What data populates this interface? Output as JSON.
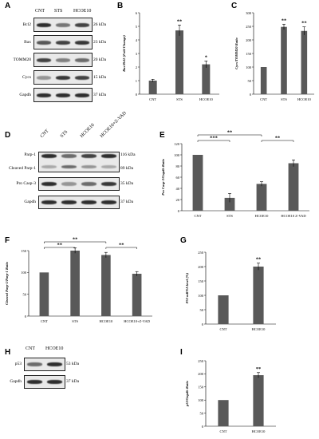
{
  "panel_labels": [
    "A",
    "B",
    "C",
    "D",
    "E",
    "F",
    "G",
    "H",
    "I"
  ],
  "blot_A": {
    "lanes": [
      "CNT",
      "STS",
      "HCOE10"
    ],
    "rows": [
      {
        "name": "Bcl2",
        "kda": "26 kDa",
        "intensity": [
          0.9,
          0.55,
          0.8
        ]
      },
      {
        "name": "Bax",
        "kda": "23 kDa",
        "intensity": [
          0.7,
          0.8,
          0.85
        ]
      },
      {
        "name": "TOMM20",
        "kda": "20 kDa",
        "intensity": [
          0.8,
          0.5,
          0.6
        ]
      },
      {
        "name": "Cycs",
        "kda": "15 kDa",
        "intensity": [
          0.4,
          0.85,
          0.8
        ]
      },
      {
        "name": "Gapdh",
        "kda": "37 kDa",
        "intensity": [
          0.9,
          0.9,
          0.9
        ]
      }
    ]
  },
  "blot_D": {
    "lanes": [
      "CNT",
      "STS",
      "HCOE10",
      "HCOE10+Z-VAD"
    ],
    "rows": [
      {
        "name": "Parp-1",
        "name2": "Cleaved Parp-1",
        "kda": "116 kDa",
        "kda2": "89 kDa",
        "intensity": [
          0.9,
          0.6,
          0.8,
          0.9
        ]
      },
      {
        "name": "Pro Casp-3",
        "kda": "35 kDa",
        "intensity": [
          0.9,
          0.4,
          0.6,
          0.85
        ]
      },
      {
        "name": "Gapdh",
        "kda": "37 kDa",
        "intensity": [
          0.9,
          0.9,
          0.9,
          0.9
        ]
      }
    ]
  },
  "blot_H": {
    "lanes": [
      "CNT",
      "HCOE10"
    ],
    "rows": [
      {
        "name": "p53",
        "kda": "53 kDa",
        "intensity": [
          0.6,
          0.9
        ]
      },
      {
        "name": "Gapdh",
        "kda": "37 kDa",
        "intensity": [
          0.9,
          0.9
        ]
      }
    ]
  },
  "chart_data": [
    {
      "id": "B",
      "type": "bar",
      "categories": [
        "CNT",
        "STS",
        "HCOE10"
      ],
      "values": [
        1,
        4.7,
        2.2
      ],
      "errors": [
        0.1,
        0.4,
        0.25
      ],
      "sig": [
        "",
        "**",
        "*"
      ],
      "ylabel": "Bax/Bcl2 (Fold Change)",
      "ylim": [
        0,
        6
      ],
      "yticks": [
        0,
        1,
        2,
        3,
        4,
        5,
        6
      ]
    },
    {
      "id": "C",
      "type": "bar",
      "categories": [
        "CNT",
        "STS",
        "HCOE10"
      ],
      "values": [
        100,
        248,
        233
      ],
      "errors": [
        0,
        10,
        15
      ],
      "sig": [
        "",
        "**",
        "**"
      ],
      "ylabel": "Cycs/TOMM20 Ratio",
      "ylim": [
        0,
        300
      ],
      "yticks": [
        0,
        50,
        100,
        150,
        200,
        250,
        300
      ]
    },
    {
      "id": "E",
      "type": "bar",
      "categories": [
        "CNT",
        "STS",
        "HCOE10",
        "HCOE10 Z-VAD"
      ],
      "values": [
        100,
        23,
        48,
        85
      ],
      "errors": [
        0,
        8,
        4,
        6
      ],
      "sig": [
        "",
        "",
        "",
        ""
      ],
      "ylabel": "Pro Casp-3/Gapdh Ratio",
      "ylim": [
        0,
        120
      ],
      "yticks": [
        0,
        20,
        40,
        60,
        80,
        100,
        120
      ],
      "brackets": [
        {
          "from": 0,
          "to": 2,
          "label": "**",
          "level": 1
        },
        {
          "from": 0,
          "to": 1,
          "label": "***",
          "level": 0
        },
        {
          "from": 2,
          "to": 3,
          "label": "**",
          "level": 0
        }
      ]
    },
    {
      "id": "F",
      "type": "bar",
      "categories": [
        "CNT",
        "STS",
        "HCOE10",
        "HCOE10+Z-VAD"
      ],
      "values": [
        100,
        150,
        140,
        97
      ],
      "errors": [
        0,
        6,
        6,
        5
      ],
      "sig": [
        "",
        "",
        "",
        ""
      ],
      "ylabel": "Cleaved Parp-1/Parp-1 Ratio",
      "ylim": [
        0,
        150
      ],
      "yticks": [
        0,
        50,
        100,
        150
      ],
      "brackets": [
        {
          "from": 0,
          "to": 2,
          "label": "**",
          "level": 1
        },
        {
          "from": 0,
          "to": 1,
          "label": "**",
          "level": 0
        },
        {
          "from": 2,
          "to": 3,
          "label": "**",
          "level": 0
        }
      ]
    },
    {
      "id": "G",
      "type": "bar",
      "categories": [
        "CNT",
        "HCOE10"
      ],
      "values": [
        100,
        200
      ],
      "errors": [
        0,
        12
      ],
      "sig": [
        "",
        "**"
      ],
      "ylabel": "P53 mRNA level (%)",
      "ylim": [
        0,
        250
      ],
      "yticks": [
        0,
        50,
        100,
        150,
        200,
        250
      ]
    },
    {
      "id": "I",
      "type": "bar",
      "categories": [
        "CNT",
        "HCOE10"
      ],
      "values": [
        100,
        195
      ],
      "errors": [
        0,
        10
      ],
      "sig": [
        "",
        "**"
      ],
      "ylabel": "p53/Gapdh Ratio",
      "ylim": [
        0,
        250
      ],
      "yticks": [
        0,
        50,
        100,
        150,
        200,
        250
      ]
    }
  ]
}
